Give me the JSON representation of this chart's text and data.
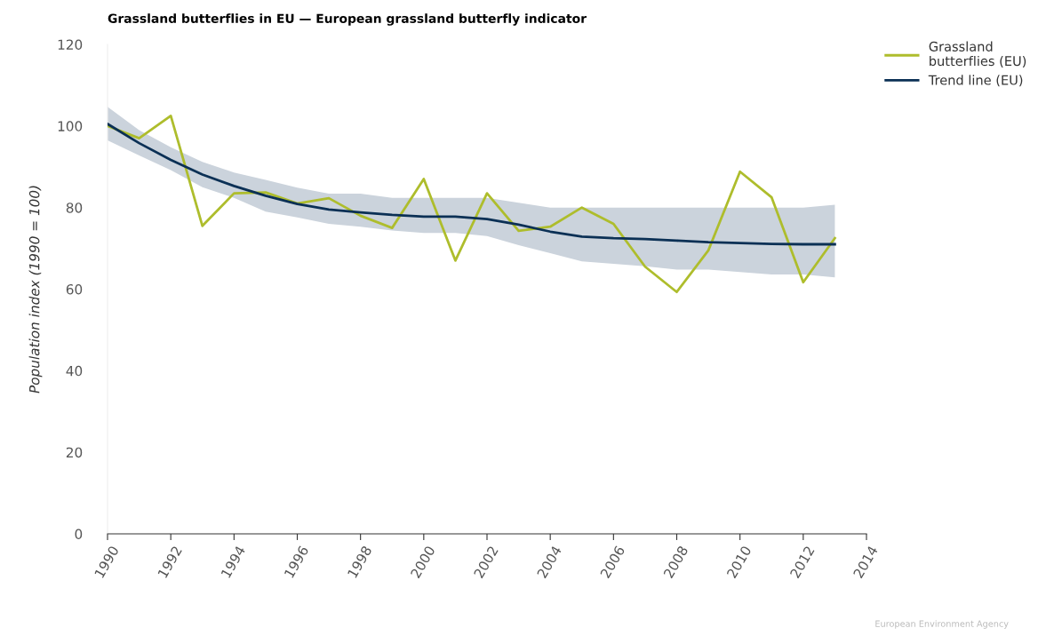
{
  "chart_data": {
    "type": "line",
    "title": "Grassland butterflies in EU — European grassland butterfly indicator",
    "ylabel": "Population index (1990 = 100)",
    "x": [
      1990,
      1991,
      1992,
      1993,
      1994,
      1995,
      1996,
      1997,
      1998,
      1999,
      2000,
      2001,
      2002,
      2003,
      2004,
      2005,
      2006,
      2007,
      2008,
      2009,
      2010,
      2011,
      2012,
      2013
    ],
    "series": [
      {
        "name": "Grassland butterflies (EU)",
        "color": "#aebd2c",
        "values": [
          100,
          97,
          102.5,
          75.5,
          83.5,
          83.7,
          81,
          82.3,
          78,
          75,
          87,
          67,
          83.5,
          74.3,
          75.3,
          80,
          76,
          65.5,
          59.3,
          69.5,
          88.8,
          82.5,
          61.7,
          72.5
        ]
      },
      {
        "name": "Trend line (EU)",
        "color": "#0b3055",
        "values": [
          100.5,
          95.8,
          91.7,
          88.1,
          85.3,
          82.9,
          80.9,
          79.5,
          78.8,
          78.2,
          77.8,
          77.8,
          77.2,
          75.8,
          74.1,
          72.9,
          72.5,
          72.3,
          71.9,
          71.5,
          71.3,
          71.1,
          71,
          71
        ],
        "lower": [
          96.5,
          92.8,
          89.2,
          85,
          82.4,
          79,
          77.6,
          76,
          75.3,
          74.4,
          73.8,
          73.8,
          73,
          70.8,
          68.8,
          66.8,
          66.2,
          65.6,
          64.8,
          64.8,
          64.2,
          63.6,
          63.6,
          62.9
        ],
        "upper": [
          104.7,
          99,
          94.8,
          91.2,
          88.6,
          86.8,
          84.9,
          83.4,
          83.4,
          82.4,
          82.4,
          82.4,
          82.4,
          81.2,
          80,
          80,
          80,
          80,
          80,
          80,
          80,
          80,
          80,
          80.7
        ]
      }
    ],
    "xlim": [
      1990,
      2014
    ],
    "xticks": [
      1990,
      1992,
      1994,
      1996,
      1998,
      2000,
      2002,
      2004,
      2006,
      2008,
      2010,
      2012,
      2014
    ],
    "ylim": [
      0,
      120
    ],
    "yticks": [
      0,
      20,
      40,
      60,
      80,
      100,
      120
    ],
    "grid": false,
    "legend": "top right",
    "marker": "none",
    "line_style": "solid",
    "annotations": [
      "European Environment Agency"
    ]
  }
}
